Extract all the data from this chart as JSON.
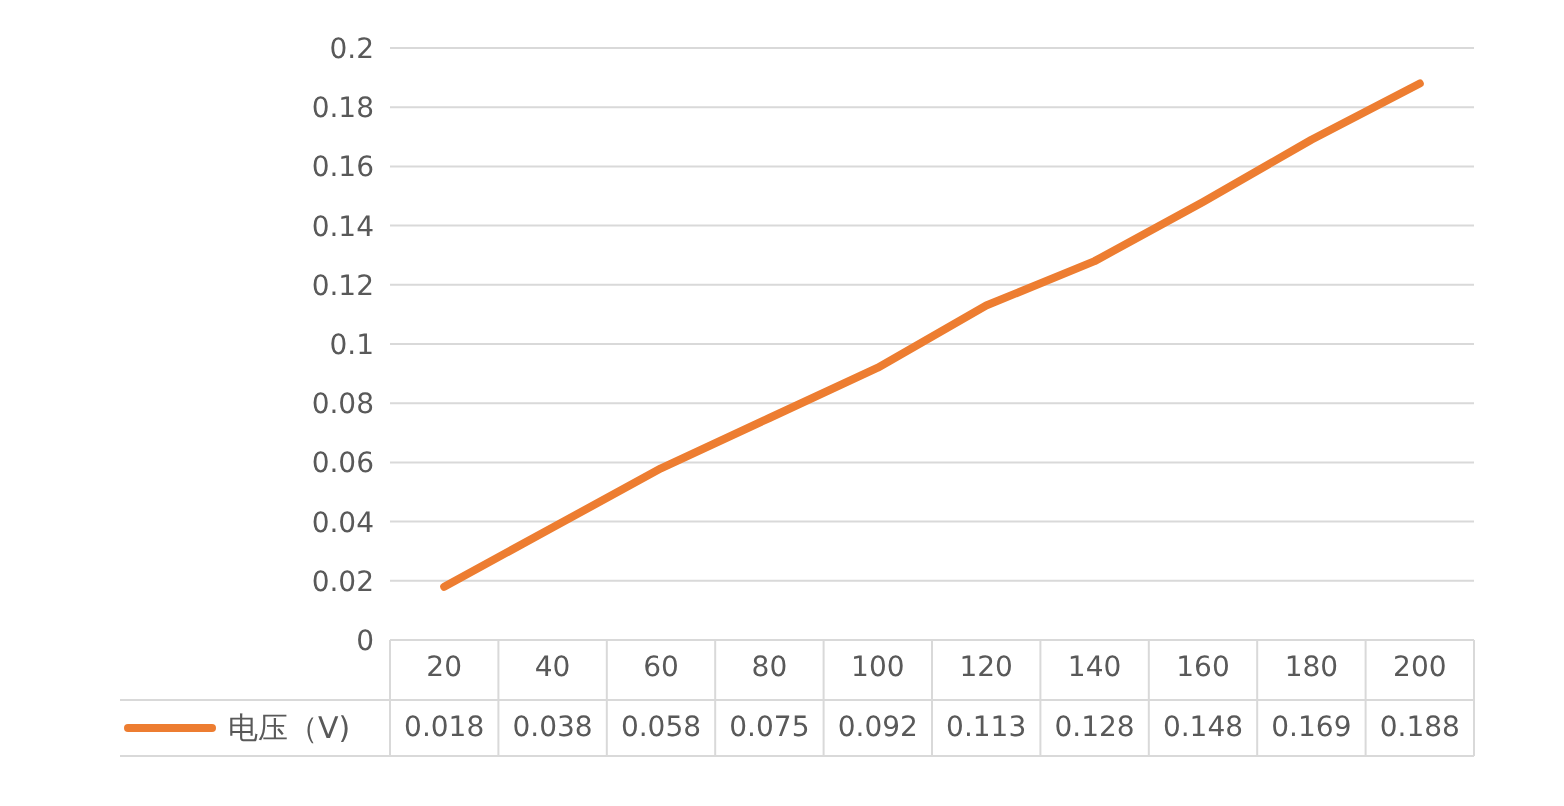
{
  "chart_data": {
    "type": "line",
    "categories": [
      "20",
      "40",
      "60",
      "80",
      "100",
      "120",
      "140",
      "160",
      "180",
      "200"
    ],
    "series": [
      {
        "name": "电压（V)",
        "color": "#ed7d31",
        "values": [
          0.018,
          0.038,
          0.058,
          0.075,
          0.092,
          0.113,
          0.128,
          0.148,
          0.169,
          0.188
        ]
      }
    ],
    "ylim": [
      0,
      0.2
    ],
    "yticks": [
      0,
      0.02,
      0.04,
      0.06,
      0.08,
      0.1,
      0.12,
      0.14,
      0.16,
      0.18,
      0.2
    ],
    "grid": "y",
    "legend": "bottom left",
    "data_labels": true,
    "marker": "none"
  }
}
